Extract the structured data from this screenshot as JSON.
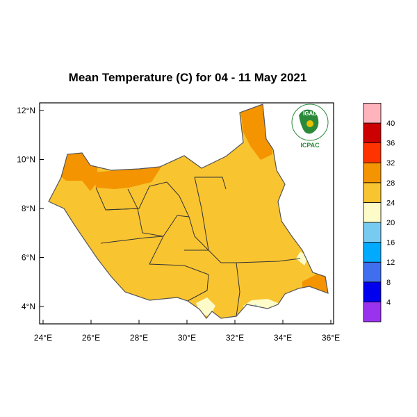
{
  "title": "Mean Temperature (C) for 04 - 11 May 2021",
  "logo": {
    "top_text": "IGAD",
    "bottom_text": "ICPAC"
  },
  "axes": {
    "x_ticks": [
      "24°E",
      "26°E",
      "28°E",
      "30°E",
      "32°E",
      "34°E",
      "36°E"
    ],
    "y_ticks": [
      "4°N",
      "6°N",
      "8°N",
      "10°N",
      "12°N"
    ]
  },
  "colorbar": {
    "bins": [
      {
        "color": "#9933ee"
      },
      {
        "color": "#0000ee"
      },
      {
        "color": "#3f6fee"
      },
      {
        "color": "#00aaff"
      },
      {
        "color": "#77cbf0"
      },
      {
        "color": "#fdfbc8"
      },
      {
        "color": "#f8c430"
      },
      {
        "color": "#f39400"
      },
      {
        "color": "#ff3300"
      },
      {
        "color": "#cc0000"
      },
      {
        "color": "#ffb3bd"
      }
    ],
    "labels": [
      "4",
      "8",
      "12",
      "16",
      "20",
      "24",
      "28",
      "32",
      "36",
      "40"
    ]
  },
  "colors": {
    "base_fill": "#f8c430",
    "warm_fill": "#f39400",
    "pale_fill": "#fdfbc8",
    "cool_fill": "#77cbf0",
    "boundary": "#333333"
  }
}
